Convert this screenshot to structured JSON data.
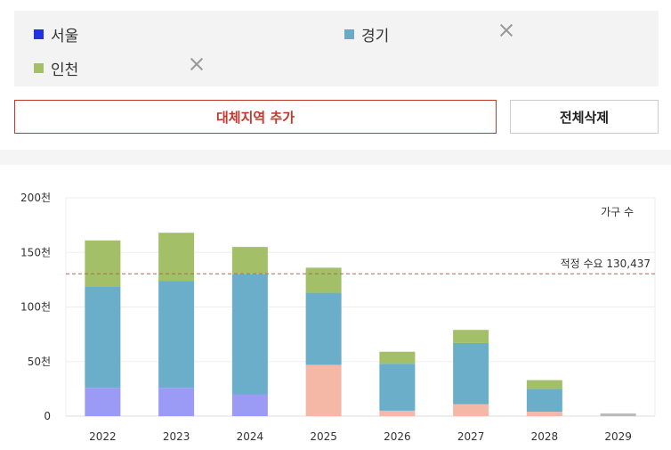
{
  "regions": [
    {
      "name": "서울",
      "color": "#2233dd",
      "removable": false
    },
    {
      "name": "경기",
      "color": "#6aaac6",
      "removable": true
    },
    {
      "name": "인천",
      "color": "#a3c069",
      "removable": true
    }
  ],
  "buttons": {
    "add_region": "대체지역 추가",
    "delete_all": "전체삭제"
  },
  "chart_data": {
    "type": "bar",
    "stacked": true,
    "title": "가구 수",
    "categories": [
      "2022",
      "2023",
      "2024",
      "2025",
      "2026",
      "2027",
      "2028",
      "2029"
    ],
    "series": [
      {
        "name": "서울",
        "color": "#9b9af5",
        "values": [
          26,
          26,
          20,
          0,
          0,
          0,
          0,
          0
        ]
      },
      {
        "name": "",
        "color": "#f5b8a6",
        "values": [
          0,
          0,
          0,
          47,
          5,
          11,
          4,
          0
        ]
      },
      {
        "name": "경기",
        "color": "#6aaec9",
        "values": [
          93,
          98,
          110,
          66,
          43,
          56,
          21,
          0
        ]
      },
      {
        "name": "인천",
        "color": "#a3c069",
        "values": [
          42,
          44,
          25,
          23,
          11,
          12,
          8,
          0
        ]
      },
      {
        "name": "",
        "color": "#bbbbbb",
        "values": [
          0,
          0,
          0,
          0,
          0,
          0,
          0,
          2.5
        ]
      }
    ],
    "yticks": [
      0,
      50,
      100,
      150,
      200
    ],
    "ytick_labels": [
      "0",
      "50천",
      "100천",
      "150천",
      "200천"
    ],
    "ylim": [
      0,
      200
    ],
    "grid": true,
    "reference_line": {
      "value": 130.437,
      "label": "적정 수요 130,437",
      "color": "#d9534f"
    }
  }
}
